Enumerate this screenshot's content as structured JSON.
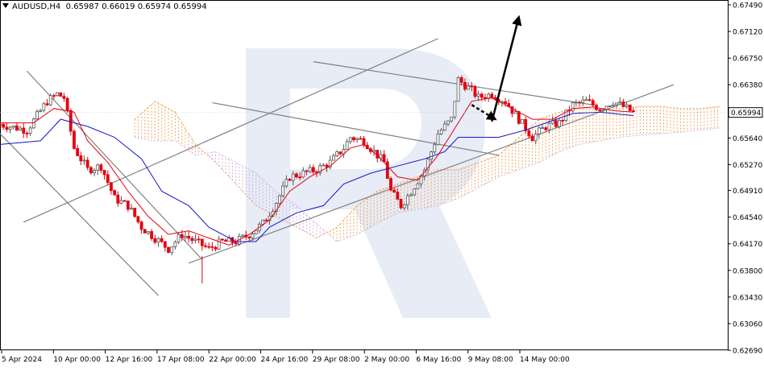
{
  "header": {
    "symbol": "AUDUSD,H4",
    "ohlc": "0.65987 0.66019 0.65974 0.65994"
  },
  "colors": {
    "bull": "#555555",
    "bear": "#e3000f",
    "tenkan": "#e3000f",
    "kijun": "#1515c8",
    "cloud_bull": "#f4a460",
    "cloud_bear": "#c8b4e6",
    "trendline": "#808080",
    "forecast_arrow": "#000000",
    "price_marker_bg": "#ffffff"
  },
  "chart_data": {
    "type": "candlestick",
    "title": "AUDUSD,H4",
    "ylim": [
      0.6269,
      0.6749
    ],
    "y_ticks": [
      "0.67490",
      "0.67120",
      "0.66750",
      "0.66380",
      "0.66010",
      "0.65640",
      "0.65270",
      "0.64910",
      "0.64540",
      "0.64170",
      "0.63800",
      "0.63430",
      "0.63060",
      "0.62690"
    ],
    "current_price": "0.65994",
    "x_ticks": [
      "5 Apr 2024",
      "10 Apr 00:00",
      "12 Apr 16:00",
      "17 Apr 08:00",
      "22 Apr 00:00",
      "24 Apr 16:00",
      "29 Apr 08:00",
      "2 May 00:00",
      "6 May 16:00",
      "9 May 08:00",
      "14 May 00:00"
    ],
    "close_path": [
      {
        "x": 0,
        "y": 0.6583
      },
      {
        "x": 8,
        "y": 0.6575
      },
      {
        "x": 14,
        "y": 0.6615
      },
      {
        "x": 17,
        "y": 0.6625
      },
      {
        "x": 19,
        "y": 0.662
      },
      {
        "x": 22,
        "y": 0.655
      },
      {
        "x": 26,
        "y": 0.652
      },
      {
        "x": 30,
        "y": 0.6525
      },
      {
        "x": 34,
        "y": 0.648
      },
      {
        "x": 38,
        "y": 0.647
      },
      {
        "x": 42,
        "y": 0.644
      },
      {
        "x": 46,
        "y": 0.6425
      },
      {
        "x": 50,
        "y": 0.641
      },
      {
        "x": 54,
        "y": 0.643
      },
      {
        "x": 58,
        "y": 0.642
      },
      {
        "x": 62,
        "y": 0.641
      },
      {
        "x": 66,
        "y": 0.642
      },
      {
        "x": 70,
        "y": 0.642
      },
      {
        "x": 74,
        "y": 0.643
      },
      {
        "x": 78,
        "y": 0.6445
      },
      {
        "x": 82,
        "y": 0.6475
      },
      {
        "x": 86,
        "y": 0.651
      },
      {
        "x": 90,
        "y": 0.6515
      },
      {
        "x": 94,
        "y": 0.652
      },
      {
        "x": 98,
        "y": 0.653
      },
      {
        "x": 102,
        "y": 0.655
      },
      {
        "x": 104,
        "y": 0.6565
      },
      {
        "x": 108,
        "y": 0.656
      },
      {
        "x": 112,
        "y": 0.654
      },
      {
        "x": 114,
        "y": 0.653
      },
      {
        "x": 116,
        "y": 0.649
      },
      {
        "x": 119,
        "y": 0.647
      },
      {
        "x": 122,
        "y": 0.649
      },
      {
        "x": 126,
        "y": 0.652
      },
      {
        "x": 130,
        "y": 0.657
      },
      {
        "x": 134,
        "y": 0.659
      },
      {
        "x": 136,
        "y": 0.6645
      },
      {
        "x": 140,
        "y": 0.663
      },
      {
        "x": 142,
        "y": 0.662
      },
      {
        "x": 146,
        "y": 0.6625
      },
      {
        "x": 150,
        "y": 0.6615
      },
      {
        "x": 154,
        "y": 0.659
      },
      {
        "x": 158,
        "y": 0.6565
      },
      {
        "x": 162,
        "y": 0.658
      },
      {
        "x": 166,
        "y": 0.6585
      },
      {
        "x": 170,
        "y": 0.661
      },
      {
        "x": 174,
        "y": 0.6615
      },
      {
        "x": 178,
        "y": 0.6605
      },
      {
        "x": 182,
        "y": 0.6615
      },
      {
        "x": 186,
        "y": 0.6605
      },
      {
        "x": 188,
        "y": 0.6599
      }
    ],
    "tenkan_path": [
      {
        "x": 0,
        "y": 0.6585
      },
      {
        "x": 10,
        "y": 0.6585
      },
      {
        "x": 16,
        "y": 0.6605
      },
      {
        "x": 22,
        "y": 0.66
      },
      {
        "x": 26,
        "y": 0.656
      },
      {
        "x": 32,
        "y": 0.653
      },
      {
        "x": 38,
        "y": 0.649
      },
      {
        "x": 44,
        "y": 0.6455
      },
      {
        "x": 50,
        "y": 0.643
      },
      {
        "x": 56,
        "y": 0.6435
      },
      {
        "x": 62,
        "y": 0.6425
      },
      {
        "x": 68,
        "y": 0.6415
      },
      {
        "x": 74,
        "y": 0.643
      },
      {
        "x": 80,
        "y": 0.645
      },
      {
        "x": 86,
        "y": 0.649
      },
      {
        "x": 92,
        "y": 0.651
      },
      {
        "x": 98,
        "y": 0.6525
      },
      {
        "x": 104,
        "y": 0.655
      },
      {
        "x": 108,
        "y": 0.6555
      },
      {
        "x": 112,
        "y": 0.654
      },
      {
        "x": 118,
        "y": 0.651
      },
      {
        "x": 124,
        "y": 0.6505
      },
      {
        "x": 130,
        "y": 0.654
      },
      {
        "x": 134,
        "y": 0.657
      },
      {
        "x": 140,
        "y": 0.6615
      },
      {
        "x": 146,
        "y": 0.662
      },
      {
        "x": 152,
        "y": 0.6605
      },
      {
        "x": 158,
        "y": 0.659
      },
      {
        "x": 164,
        "y": 0.659
      },
      {
        "x": 170,
        "y": 0.6605
      },
      {
        "x": 176,
        "y": 0.6607
      },
      {
        "x": 182,
        "y": 0.6602
      },
      {
        "x": 188,
        "y": 0.66
      }
    ],
    "kijun_path": [
      {
        "x": 0,
        "y": 0.6555
      },
      {
        "x": 12,
        "y": 0.656
      },
      {
        "x": 18,
        "y": 0.659
      },
      {
        "x": 26,
        "y": 0.658
      },
      {
        "x": 34,
        "y": 0.6565
      },
      {
        "x": 42,
        "y": 0.6535
      },
      {
        "x": 48,
        "y": 0.649
      },
      {
        "x": 56,
        "y": 0.647
      },
      {
        "x": 62,
        "y": 0.644
      },
      {
        "x": 70,
        "y": 0.642
      },
      {
        "x": 76,
        "y": 0.642
      },
      {
        "x": 80,
        "y": 0.644
      },
      {
        "x": 88,
        "y": 0.646
      },
      {
        "x": 96,
        "y": 0.647
      },
      {
        "x": 102,
        "y": 0.65
      },
      {
        "x": 110,
        "y": 0.6515
      },
      {
        "x": 118,
        "y": 0.6525
      },
      {
        "x": 126,
        "y": 0.6535
      },
      {
        "x": 132,
        "y": 0.6545
      },
      {
        "x": 136,
        "y": 0.6565
      },
      {
        "x": 148,
        "y": 0.6565
      },
      {
        "x": 156,
        "y": 0.6575
      },
      {
        "x": 162,
        "y": 0.6585
      },
      {
        "x": 170,
        "y": 0.6598
      },
      {
        "x": 178,
        "y": 0.66
      },
      {
        "x": 188,
        "y": 0.6595
      }
    ],
    "cloud": [
      {
        "x": 40,
        "span_a": 0.659,
        "span_b": 0.6565
      },
      {
        "x": 46,
        "span_a": 0.6615,
        "span_b": 0.656
      },
      {
        "x": 52,
        "span_a": 0.66,
        "span_b": 0.656
      },
      {
        "x": 58,
        "span_a": 0.6555,
        "span_b": 0.654
      },
      {
        "x": 64,
        "span_a": 0.653,
        "span_b": 0.6545
      },
      {
        "x": 70,
        "span_a": 0.65,
        "span_b": 0.653
      },
      {
        "x": 76,
        "span_a": 0.647,
        "span_b": 0.6515
      },
      {
        "x": 82,
        "span_a": 0.6455,
        "span_b": 0.649
      },
      {
        "x": 88,
        "span_a": 0.644,
        "span_b": 0.647
      },
      {
        "x": 94,
        "span_a": 0.6425,
        "span_b": 0.6445
      },
      {
        "x": 100,
        "span_a": 0.644,
        "span_b": 0.642
      },
      {
        "x": 106,
        "span_a": 0.647,
        "span_b": 0.643
      },
      {
        "x": 112,
        "span_a": 0.649,
        "span_b": 0.6445
      },
      {
        "x": 118,
        "span_a": 0.65,
        "span_b": 0.646
      },
      {
        "x": 124,
        "span_a": 0.651,
        "span_b": 0.6465
      },
      {
        "x": 130,
        "span_a": 0.652,
        "span_b": 0.647
      },
      {
        "x": 136,
        "span_a": 0.652,
        "span_b": 0.648
      },
      {
        "x": 142,
        "span_a": 0.653,
        "span_b": 0.6495
      },
      {
        "x": 148,
        "span_a": 0.654,
        "span_b": 0.651
      },
      {
        "x": 154,
        "span_a": 0.6565,
        "span_b": 0.652
      },
      {
        "x": 160,
        "span_a": 0.659,
        "span_b": 0.653
      },
      {
        "x": 166,
        "span_a": 0.66,
        "span_b": 0.6545
      },
      {
        "x": 172,
        "span_a": 0.6605,
        "span_b": 0.6555
      },
      {
        "x": 178,
        "span_a": 0.6605,
        "span_b": 0.656
      },
      {
        "x": 184,
        "span_a": 0.6605,
        "span_b": 0.6565
      },
      {
        "x": 190,
        "span_a": 0.6608,
        "span_b": 0.6568
      },
      {
        "x": 196,
        "span_a": 0.6608,
        "span_b": 0.657
      },
      {
        "x": 202,
        "span_a": 0.6605,
        "span_b": 0.6572
      },
      {
        "x": 208,
        "span_a": 0.6605,
        "span_b": 0.6575
      },
      {
        "x": 214,
        "span_a": 0.6608,
        "span_b": 0.6578
      }
    ],
    "trendlines": [
      {
        "x1": 8,
        "y1": 0.6657,
        "x2": 60,
        "y2": 0.6395
      },
      {
        "x1": 0,
        "y1": 0.657,
        "x2": 47,
        "y2": 0.6345
      },
      {
        "x1": 7,
        "y1": 0.6447,
        "x2": 130,
        "y2": 0.6702
      },
      {
        "x1": 56,
        "y1": 0.639,
        "x2": 200,
        "y2": 0.6638
      },
      {
        "x1": 63,
        "y1": 0.6613,
        "x2": 148,
        "y2": 0.654
      },
      {
        "x1": 93,
        "y1": 0.667,
        "x2": 176,
        "y2": 0.661
      }
    ],
    "forecast_arrows": [
      {
        "x1": 140,
        "y1": 0.661,
        "x2": 147,
        "y2": 0.659
      },
      {
        "x1": 146,
        "y1": 0.6587,
        "x2": 154,
        "y2": 0.6732
      }
    ]
  }
}
